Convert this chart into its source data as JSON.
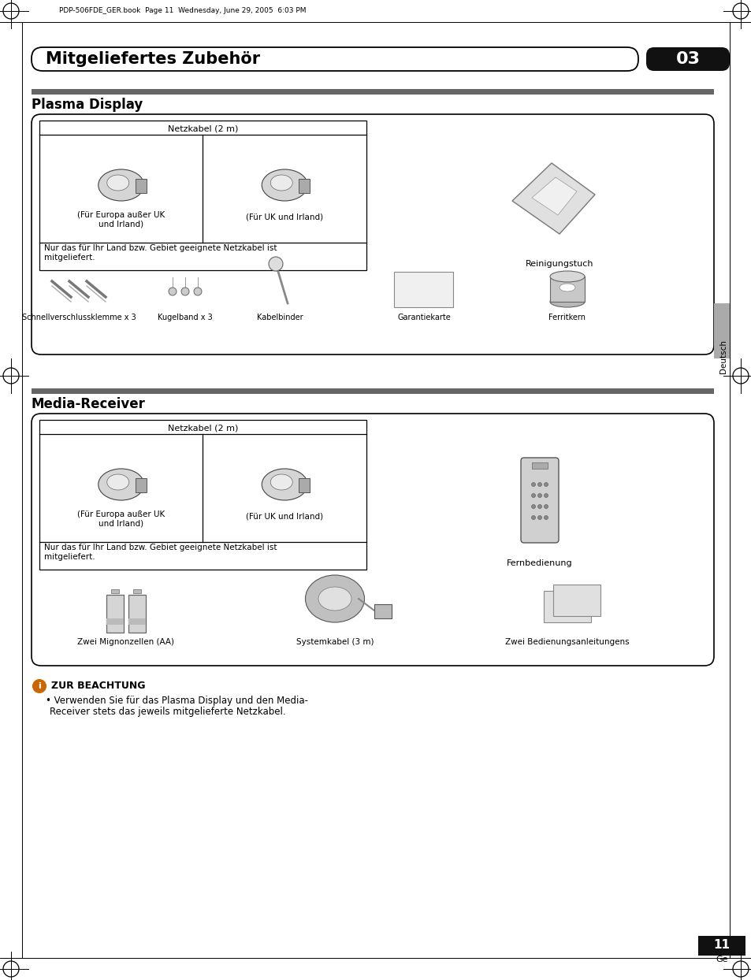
{
  "page_bg": "#ffffff",
  "header_text": "Mitgeliefertes Zubehör",
  "header_number": "03",
  "top_file_text": "PDP-506FDE_GER.book  Page 11  Wednesday, June 29, 2005  6:03 PM",
  "section1_title": "Plasma Display",
  "section2_title": "Media-Receiver",
  "netzkabel_label": "Netzkabel (2 m)",
  "fuer_europa_label": "(Für Europa außer UK\nund Irland)",
  "fuer_uk_label": "(Für UK und Irland)",
  "nur_das_text": "Nur das für Ihr Land bzw. Gebiet geeignete Netzkabel ist\nmitgeliefert.",
  "reinigungstuch_label": "Reinigungstuch",
  "schnell_label": "Schnellverschlussklemme x 3",
  "kugel_label": "Kugelband x 3",
  "kabel_label": "Kabelbinder",
  "garantie_label": "Garantiekarte",
  "ferrit_label": "Ferritkern",
  "fernbedienung_label": "Fernbedienung",
  "zwei_mignon_label": "Zwei Mignonzellen (AA)",
  "system_label": "Systemkabel (3 m)",
  "zwei_bed_label": "Zwei Bedienungsanleitungens",
  "note_title": "ZUR BEACHTUNG",
  "note_text1": "Verwenden Sie für das Plasma Display und den Media-",
  "note_text2": "Receiver stets das jeweils mitgelieferte Netzkabel.",
  "page_number": "11",
  "page_sub": "Ge",
  "deutsch_label": "Deutsch",
  "section_bar_color": "#666666",
  "gray_sidebar": "#aaaaaa"
}
